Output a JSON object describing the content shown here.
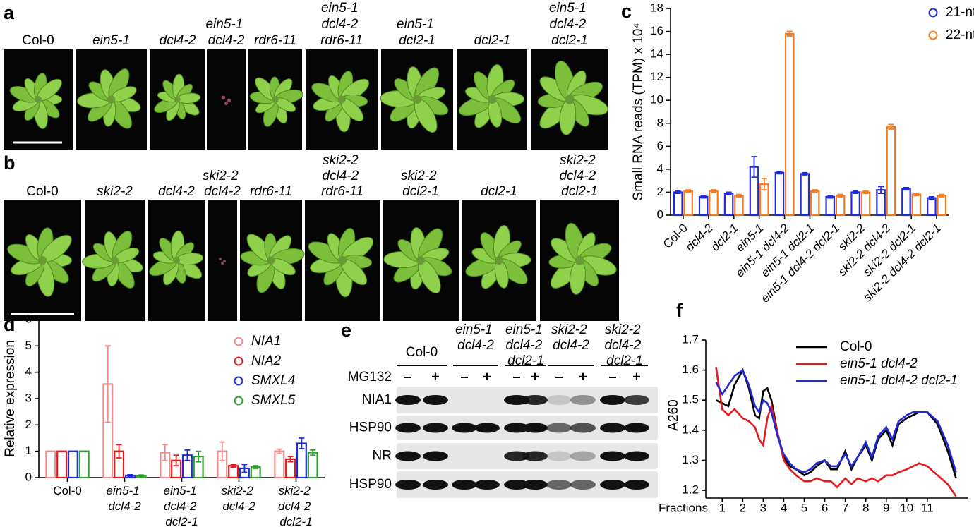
{
  "panel_a": {
    "label": "a",
    "genotypes": [
      "Col-0",
      "ein5-1",
      "dcl4-2",
      "ein5-1 dcl4-2",
      "rdr6-11",
      "ein5-1 dcl4-2 rdr6-11",
      "ein5-1 dcl2-1",
      "dcl2-1",
      "ein5-1 dcl4-2 dcl2-1"
    ]
  },
  "panel_b": {
    "label": "b",
    "genotypes": [
      "Col-0",
      "ski2-2",
      "dcl4-2",
      "ski2-2 dcl4-2",
      "rdr6-11",
      "ski2-2 dcl4-2 rdr6-11",
      "ski2-2 dcl2-1",
      "dcl2-1",
      "ski2-2 dcl4-2 dcl2-1"
    ]
  },
  "panel_e": {
    "label": "e",
    "columns": [
      "Col-0",
      "ein5-1 dcl4-2",
      "ein5-1 dcl4-2 dcl2-1",
      "ski2-2 dcl4-2",
      "ski2-2 dcl4-2 dcl2-1"
    ],
    "treatment": "MG132",
    "lanes": [
      "–",
      "+",
      "–",
      "+",
      "–",
      "+",
      "–",
      "+",
      "–",
      "+"
    ],
    "rows": [
      "NIA1",
      "HSP90",
      "NR",
      "HSP90"
    ]
  },
  "chart_data": [
    {
      "panel_label": "c",
      "type": "bar",
      "ylabel": "Small RNA reads (TPM) x 10⁴",
      "categories": [
        "Col-0",
        "dcl4-2",
        "dcl2-1",
        "ein5-1",
        "ein5-1 dcl4-2",
        "ein5-1 dcl2-1",
        "ein5-1 dcl4-2 dcl2-1",
        "ski2-2",
        "ski2-2 dcl4-2",
        "ski2-2 dcl2-1",
        "ski2-2 dcl4-2 dcl2-1"
      ],
      "series": [
        {
          "name": "21-nt",
          "color": "#1f2bd6",
          "values": [
            2.0,
            1.6,
            1.9,
            4.2,
            3.7,
            3.6,
            1.6,
            2.0,
            2.2,
            2.3,
            1.5
          ],
          "errors": [
            0.1,
            0.1,
            0.1,
            0.9,
            0.1,
            0.1,
            0.1,
            0.1,
            0.3,
            0.1,
            0.1
          ]
        },
        {
          "name": "22-nt",
          "color": "#f47c20",
          "values": [
            2.1,
            2.1,
            1.7,
            2.7,
            15.8,
            2.1,
            1.7,
            2.0,
            7.7,
            1.8,
            1.7
          ],
          "errors": [
            0.1,
            0.1,
            0.1,
            0.5,
            0.2,
            0.1,
            0.1,
            0.1,
            0.2,
            0.1,
            0.1
          ]
        }
      ],
      "ylim": [
        0,
        18
      ],
      "yticks": [
        0,
        2,
        4,
        6,
        8,
        10,
        12,
        14,
        16,
        18
      ],
      "legend": "upper right"
    },
    {
      "panel_label": "d",
      "type": "bar",
      "ylabel": "Relative expression",
      "categories": [
        "Col-0",
        "ein5-1 dcl4-2",
        "ein5-1 dcl4-2 dcl2-1",
        "ski2-2 dcl4-2",
        "ski2-2 dcl4-2 dcl2-1"
      ],
      "series": [
        {
          "name": "NIA1",
          "color": "#f28c8c",
          "values": [
            1,
            3.55,
            0.95,
            1.0,
            1.0
          ],
          "errors": [
            0,
            1.45,
            0.3,
            0.35,
            0.08
          ]
        },
        {
          "name": "NIA2",
          "color": "#e41a1c",
          "values": [
            1,
            1.0,
            0.65,
            0.45,
            0.7
          ],
          "errors": [
            0,
            0.25,
            0.2,
            0.05,
            0.1
          ]
        },
        {
          "name": "SMXL4",
          "color": "#1f2bd6",
          "values": [
            1,
            0.08,
            0.85,
            0.35,
            1.3
          ],
          "errors": [
            0,
            0.03,
            0.2,
            0.15,
            0.2
          ]
        },
        {
          "name": "SMXL5",
          "color": "#2ca02c",
          "values": [
            1,
            0.07,
            0.8,
            0.4,
            0.95
          ],
          "errors": [
            0,
            0.03,
            0.2,
            0.05,
            0.1
          ]
        }
      ],
      "ylim": [
        0,
        6
      ],
      "yticks": [
        0,
        1,
        2,
        3,
        4,
        5,
        6
      ],
      "legend": "upper right"
    },
    {
      "panel_label": "f",
      "type": "line",
      "xlabel": "Fractions",
      "ylabel": "A260",
      "x": [
        0.7,
        1.0,
        1.3,
        1.6,
        2.0,
        2.3,
        2.6,
        2.8,
        3.0,
        3.2,
        3.4,
        3.7,
        4.0,
        4.3,
        4.6,
        5.0,
        5.3,
        5.6,
        6.0,
        6.3,
        6.6,
        7.0,
        7.3,
        7.6,
        8.0,
        8.3,
        8.6,
        9.0,
        9.3,
        9.6,
        10.0,
        10.3,
        10.6,
        11.0,
        11.5,
        12.0,
        12.4
      ],
      "series": [
        {
          "name": "Col-0",
          "color": "#000000",
          "values": [
            1.5,
            1.49,
            1.48,
            1.55,
            1.6,
            1.54,
            1.45,
            1.44,
            1.53,
            1.54,
            1.5,
            1.39,
            1.31,
            1.28,
            1.27,
            1.25,
            1.26,
            1.28,
            1.3,
            1.27,
            1.27,
            1.33,
            1.27,
            1.31,
            1.35,
            1.3,
            1.37,
            1.4,
            1.35,
            1.42,
            1.44,
            1.45,
            1.46,
            1.46,
            1.42,
            1.33,
            1.24
          ]
        },
        {
          "name": "ein5-1 dcl4-2",
          "color": "#e41a1c",
          "values": [
            1.61,
            1.47,
            1.45,
            1.47,
            1.44,
            1.43,
            1.41,
            1.37,
            1.35,
            1.44,
            1.48,
            1.39,
            1.3,
            1.27,
            1.25,
            1.23,
            1.23,
            1.24,
            1.23,
            1.23,
            1.21,
            1.24,
            1.22,
            1.24,
            1.23,
            1.24,
            1.23,
            1.25,
            1.25,
            1.26,
            1.27,
            1.28,
            1.29,
            1.28,
            1.25,
            1.22,
            1.18
          ]
        },
        {
          "name": "ein5-1 dcl4-2 dcl2-1",
          "color": "#1f2bd6",
          "values": [
            1.56,
            1.52,
            1.55,
            1.58,
            1.6,
            1.55,
            1.48,
            1.46,
            1.5,
            1.49,
            1.46,
            1.38,
            1.32,
            1.29,
            1.27,
            1.26,
            1.27,
            1.29,
            1.3,
            1.28,
            1.28,
            1.32,
            1.28,
            1.31,
            1.36,
            1.31,
            1.38,
            1.41,
            1.37,
            1.43,
            1.45,
            1.46,
            1.46,
            1.46,
            1.43,
            1.35,
            1.26
          ]
        }
      ],
      "xlim": [
        0.2,
        13
      ],
      "xticks": [
        1,
        2,
        3,
        4,
        5,
        6,
        7,
        8,
        9,
        10,
        11
      ],
      "ylim": [
        1.2,
        1.7
      ],
      "yticks": [
        1.2,
        1.3,
        1.4,
        1.5,
        1.6,
        1.7
      ],
      "legend": "upper center"
    }
  ]
}
